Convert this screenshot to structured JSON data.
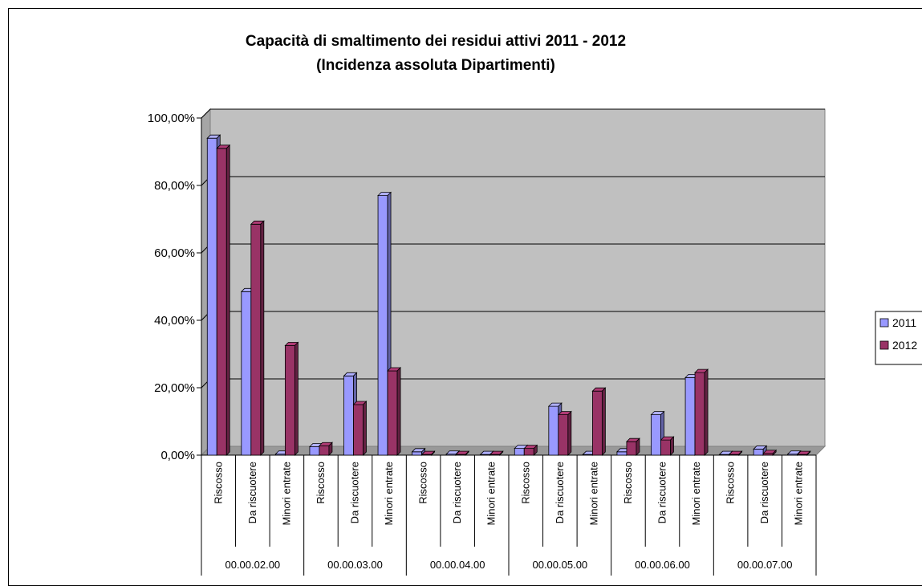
{
  "chart_data": {
    "type": "bar",
    "title": "Capacità di smaltimento dei residui attivi 2011 - 2012",
    "subtitle": "(Incidenza assoluta Dipartimenti)",
    "ylim": [
      0,
      100
    ],
    "y_ticks": [
      "0,00%",
      "20,00%",
      "40,00%",
      "60,00%",
      "80,00%",
      "100,00%"
    ],
    "groups": [
      "00.00.02.00",
      "00.00.03.00",
      "00.00.04.00",
      "00.00.05.00",
      "00.00.06.00",
      "00.00.07.00"
    ],
    "subcategories": [
      "Riscosso",
      "Da riscuotere",
      "Minori entrate"
    ],
    "series": [
      {
        "name": "2011",
        "color": "#9999FF",
        "values": [
          94,
          48.5,
          0.3,
          2.5,
          23.5,
          77,
          1,
          0.3,
          0.2,
          2,
          14.5,
          0.2,
          1,
          12,
          23,
          0.2,
          1.8,
          0.3
        ]
      },
      {
        "name": "2012",
        "color": "#993366",
        "values": [
          91,
          68.5,
          32.5,
          2.8,
          15,
          25,
          0.2,
          0.2,
          0.2,
          2,
          12,
          19,
          4,
          4.5,
          24.5,
          0.2,
          0.5,
          0.2
        ]
      }
    ],
    "grid": true,
    "legend": "right"
  }
}
